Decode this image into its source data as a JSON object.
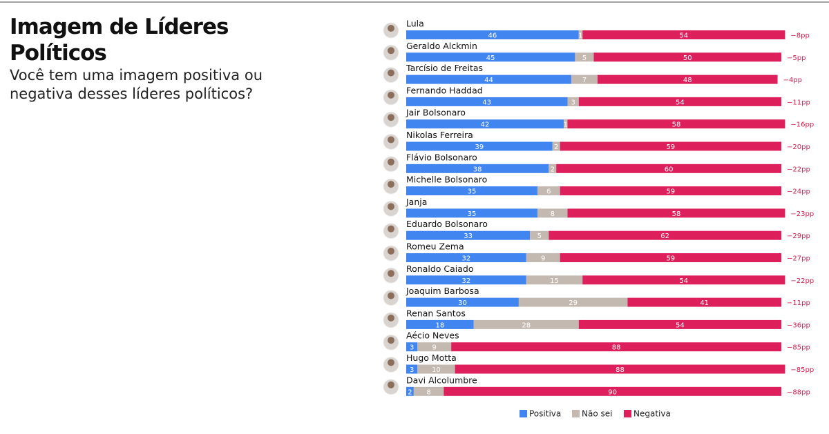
{
  "chart_data": {
    "type": "stacked_bar_horizontal",
    "title": "Imagem de Líderes Políticos",
    "subtitle": "Você tem uma imagem positiva ou negativa desses líderes políticos?",
    "categories": [
      "Lula",
      "Geraldo Alckmin",
      "Tarcísio de Freitas",
      "Fernando Haddad",
      "Jair Bolsonaro",
      "Nikolas Ferreira",
      "Flávio Bolsonaro",
      "Michelle Bolsonaro",
      "Janja",
      "Eduardo Bolsonaro",
      "Romeu Zema",
      "Ronaldo Caiado",
      "Joaquim Barbosa",
      "Renan Santos",
      "Aécio Neves",
      "Hugo Motta",
      "Davi Alcolumbre"
    ],
    "series": [
      {
        "name": "Positiva",
        "color": "#4185f0",
        "values": [
          46,
          45,
          44,
          43,
          42,
          39,
          38,
          35,
          35,
          33,
          32,
          32,
          30,
          18,
          3,
          3,
          2
        ]
      },
      {
        "name": "Não sei",
        "color": "#c4b9b1",
        "values": [
          1,
          5,
          7,
          3,
          1,
          2,
          2,
          6,
          8,
          5,
          9,
          15,
          29,
          28,
          9,
          10,
          8
        ]
      },
      {
        "name": "Negativa",
        "color": "#dd1f5b",
        "values": [
          54,
          50,
          48,
          54,
          58,
          59,
          60,
          59,
          58,
          62,
          59,
          54,
          41,
          54,
          88,
          88,
          90
        ]
      }
    ],
    "net_labels": [
      "−8pp",
      "−5pp",
      "−4pp",
      "−11pp",
      "−16pp",
      "−20pp",
      "−22pp",
      "−24pp",
      "−23pp",
      "−29pp",
      "−27pp",
      "−22pp",
      "−11pp",
      "−36pp",
      "−85pp",
      "−85pp",
      "−88pp"
    ],
    "net_color": "#d0204f",
    "xlim": [
      0,
      100
    ]
  }
}
